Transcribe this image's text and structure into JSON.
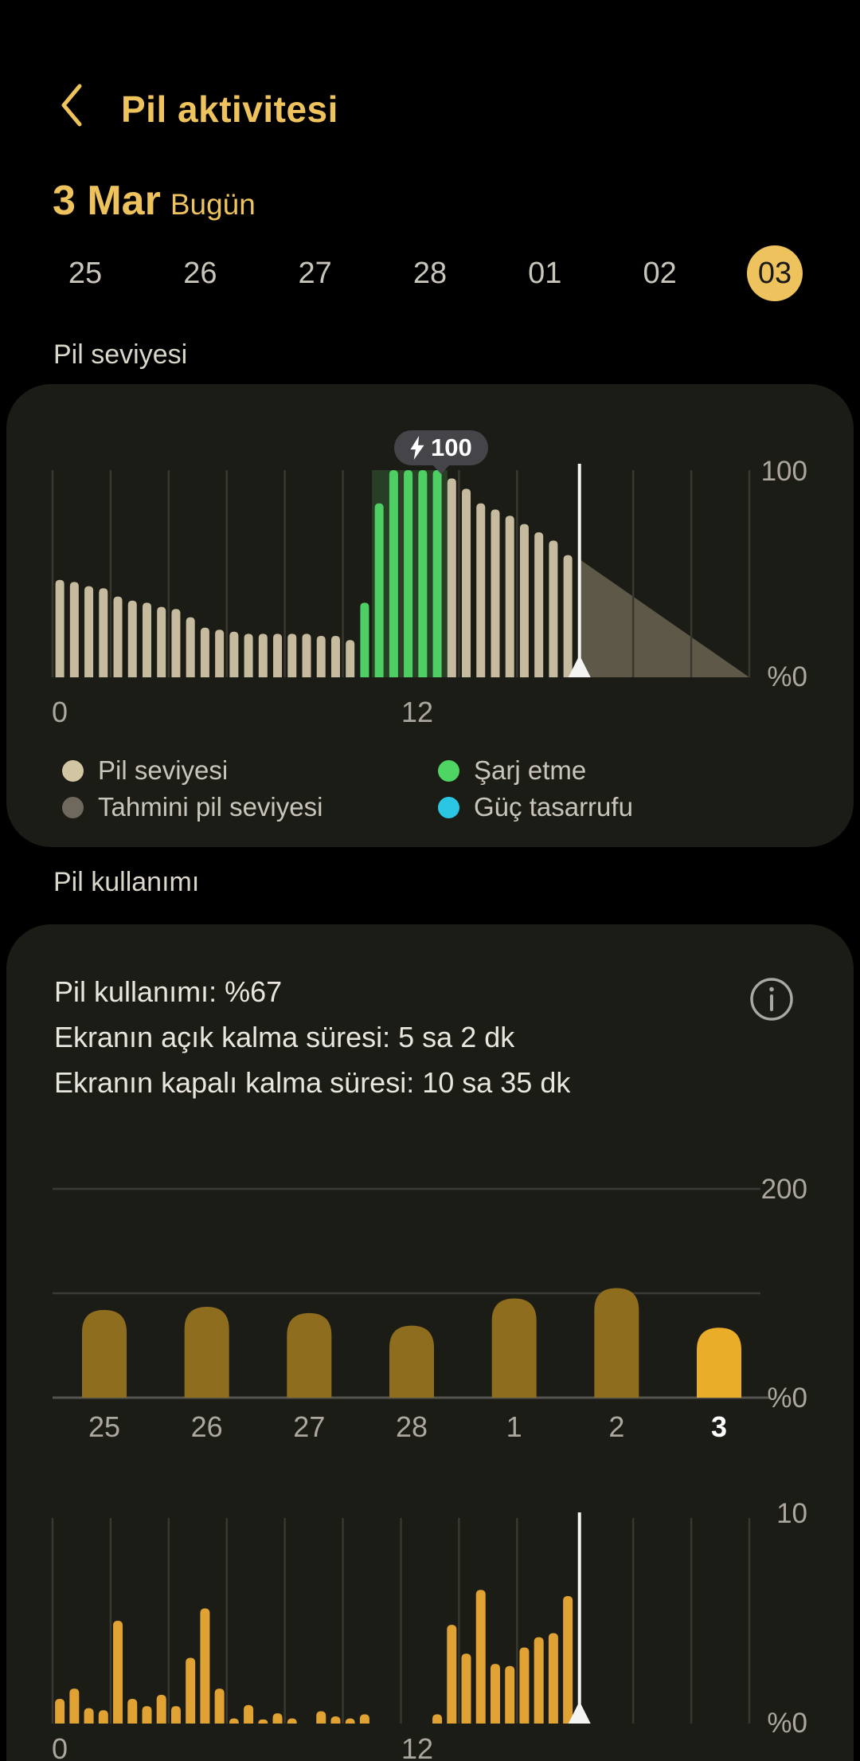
{
  "header": {
    "title": "Pil aktivitesi"
  },
  "date_heading": {
    "date": "3 Mar",
    "label": "Bugün"
  },
  "date_selector": {
    "days": [
      "25",
      "26",
      "27",
      "28",
      "01",
      "02",
      "03"
    ],
    "selected": "03"
  },
  "battery_level_section": {
    "title": "Pil seviyesi",
    "tooltip": {
      "value": "100",
      "icon": "lightning-icon"
    },
    "legend": [
      {
        "label": "Pil seviyesi",
        "color": "#D2C5A4"
      },
      {
        "label": "Tahmini pil seviyesi",
        "color": "#6F695D"
      },
      {
        "label": "Şarj etme",
        "color": "#4ED564"
      },
      {
        "label": "Güç tasarrufu",
        "color": "#2BC6E4"
      }
    ]
  },
  "battery_usage_section": {
    "title": "Pil kullanımı",
    "summary": [
      "Pil kullanımı: %67",
      "Ekranın açık kalma süresi: 5 sa 2 dk",
      "Ekranın kapalı kalma süresi: 10 sa 35 dk"
    ]
  },
  "chart_data": [
    {
      "id": "battery-level",
      "type": "bar",
      "title": "Pil seviyesi",
      "slot_hours": 0.5,
      "x_range_hours": [
        0,
        24
      ],
      "xticks": [
        "0",
        "12"
      ],
      "ylabels": [
        "100",
        "%0"
      ],
      "yrange": [
        0,
        100
      ],
      "now_hour": 18.15,
      "bars": [
        {
          "v": 47,
          "kind": "level"
        },
        {
          "v": 46,
          "kind": "level"
        },
        {
          "v": 44,
          "kind": "level"
        },
        {
          "v": 43,
          "kind": "level"
        },
        {
          "v": 39,
          "kind": "level"
        },
        {
          "v": 37,
          "kind": "level"
        },
        {
          "v": 36,
          "kind": "level"
        },
        {
          "v": 34,
          "kind": "level"
        },
        {
          "v": 33,
          "kind": "level"
        },
        {
          "v": 29,
          "kind": "level"
        },
        {
          "v": 24,
          "kind": "level"
        },
        {
          "v": 23,
          "kind": "level"
        },
        {
          "v": 22,
          "kind": "level"
        },
        {
          "v": 21,
          "kind": "level"
        },
        {
          "v": 21,
          "kind": "level"
        },
        {
          "v": 21,
          "kind": "level"
        },
        {
          "v": 21,
          "kind": "level"
        },
        {
          "v": 21,
          "kind": "level"
        },
        {
          "v": 20,
          "kind": "level"
        },
        {
          "v": 20,
          "kind": "level"
        },
        {
          "v": 18,
          "kind": "level"
        },
        {
          "v": 36,
          "kind": "charging"
        },
        {
          "v": 84,
          "kind": "charging"
        },
        {
          "v": 100,
          "kind": "charging"
        },
        {
          "v": 100,
          "kind": "charging"
        },
        {
          "v": 100,
          "kind": "charging"
        },
        {
          "v": 100,
          "kind": "charging"
        },
        {
          "v": 96,
          "kind": "level"
        },
        {
          "v": 91,
          "kind": "level"
        },
        {
          "v": 84,
          "kind": "level"
        },
        {
          "v": 81,
          "kind": "level"
        },
        {
          "v": 78,
          "kind": "level"
        },
        {
          "v": 74,
          "kind": "level"
        },
        {
          "v": 70,
          "kind": "level"
        },
        {
          "v": 66,
          "kind": "level"
        },
        {
          "v": 59,
          "kind": "level"
        }
      ],
      "charge_window_hours": [
        11.0,
        13.6
      ],
      "projection": {
        "from_hour": 18.15,
        "from_value": 57,
        "to_hour": 24,
        "to_value": 0
      },
      "colors": {
        "level": "#C6BB9E",
        "charging": "#4ECF63",
        "projection": "#5E5848",
        "charge_window": "rgba(92,200,98,0.20)",
        "gridline": "#38382F",
        "now_line": "#F4F4F2",
        "axis_label": "#ABA79E"
      }
    },
    {
      "id": "daily-usage",
      "type": "bar",
      "categories": [
        "25",
        "26",
        "27",
        "28",
        "1",
        "2",
        "3"
      ],
      "values": [
        84,
        87,
        81,
        69,
        95,
        105,
        67
      ],
      "highlight_index": 6,
      "ylabels": [
        "200",
        "%0"
      ],
      "yrange": [
        0,
        200
      ],
      "gridline_values": [
        100,
        200
      ],
      "colors": {
        "bar": "#8F6D1E",
        "highlight_bar": "#E9AD29",
        "gridline": "#3B3B35",
        "baseline": "#55544E",
        "label": "#ACA89F",
        "highlight_label": "#FFFFFF",
        "axis_label": "#ABA79E"
      }
    },
    {
      "id": "hourly-usage",
      "type": "bar",
      "slot_hours": 0.5,
      "x_range_hours": [
        0,
        24
      ],
      "xticks": [
        "0",
        "12"
      ],
      "ylabels": [
        "10",
        "%0"
      ],
      "yrange": [
        0,
        10
      ],
      "now_hour": 18.15,
      "values": [
        1.2,
        1.7,
        0.75,
        0.65,
        5,
        1.2,
        0.85,
        1.4,
        0.85,
        3.2,
        5.6,
        1.7,
        0.25,
        0.9,
        0.2,
        0.5,
        0.25,
        0,
        0.6,
        0.35,
        0.25,
        0.45,
        0,
        0,
        0,
        0,
        0.45,
        4.8,
        3.4,
        6.5,
        2.9,
        2.8,
        3.7,
        4.2,
        4.4,
        6.2
      ],
      "colors": {
        "bar": "#DFA233",
        "gridline": "#38382F",
        "now_line": "#F4F4F2",
        "axis_label": "#ABA79E"
      }
    }
  ],
  "misc": {
    "accent": "#EEC25C",
    "background": "#000000",
    "card_background": "#1C1C16"
  }
}
